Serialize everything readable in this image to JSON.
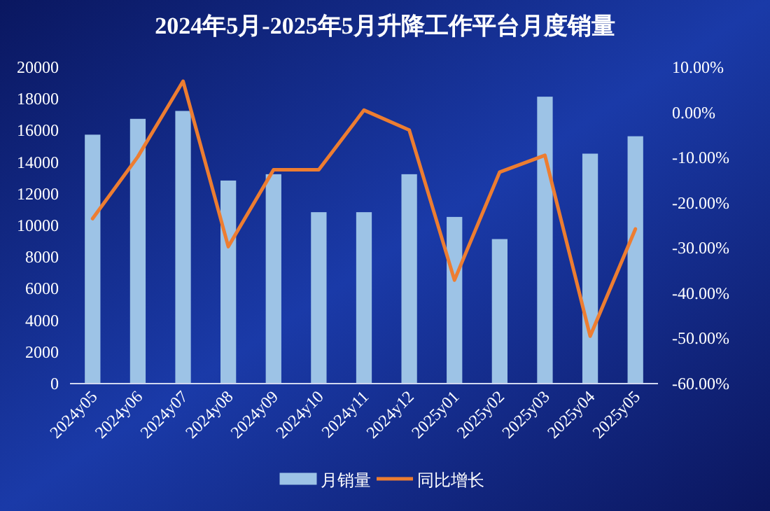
{
  "chart_data": {
    "type": "bar",
    "title": "2024年5月-2025年5月升降工作平台月度销量",
    "categories": [
      "2024y05",
      "2024y06",
      "2024y07",
      "2024y08",
      "2024y09",
      "2024y10",
      "2024y11",
      "2024y12",
      "2025y01",
      "2025y02",
      "2025y03",
      "2025y04",
      "2025y05"
    ],
    "series": [
      {
        "name": "月销量",
        "color": "#9dc3e6",
        "values": [
          15700,
          16700,
          17200,
          12800,
          13200,
          10800,
          10800,
          13200,
          10500,
          9100,
          18100,
          14500,
          15600
        ]
      },
      {
        "name": "同比增长",
        "type": "line",
        "axis": "y2",
        "color": "#ed7d31",
        "values": [
          -23.5,
          -9.8,
          6.9,
          -29.7,
          -12.7,
          -12.7,
          0.5,
          -3.9,
          -37.1,
          -13.2,
          -9.5,
          -49.5,
          -25.8
        ]
      }
    ],
    "ylim": [
      0,
      20000
    ],
    "yticks": [
      0,
      2000,
      4000,
      6000,
      8000,
      10000,
      12000,
      14000,
      16000,
      18000,
      20000
    ],
    "y2lim": [
      -60,
      10
    ],
    "y2ticks": [
      {
        "value": -60,
        "label": "-60.00%"
      },
      {
        "value": -50,
        "label": "-50.00%"
      },
      {
        "value": -40,
        "label": "-40.00%"
      },
      {
        "value": -30,
        "label": "-30.00%"
      },
      {
        "value": -20,
        "label": "-20.00%"
      },
      {
        "value": -10,
        "label": "-10.00%"
      },
      {
        "value": 0,
        "label": "0.00%"
      },
      {
        "value": 10,
        "label": "10.00%"
      }
    ],
    "legend": "bottom"
  }
}
